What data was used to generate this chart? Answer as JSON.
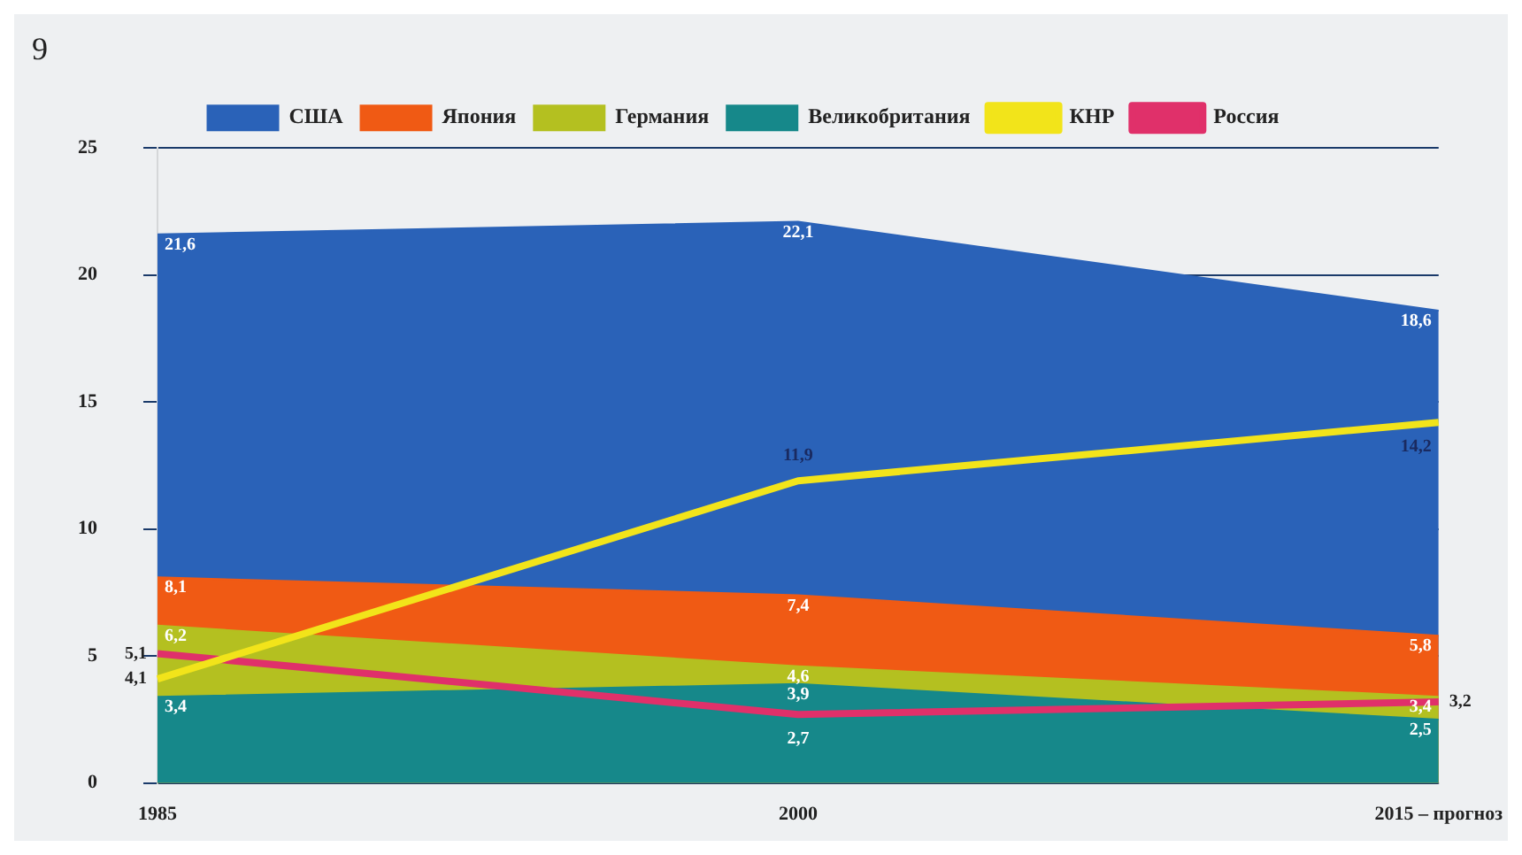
{
  "chart_data": {
    "type": "area",
    "title": "9",
    "categories": [
      "1985",
      "2000",
      "2015 – прогноз"
    ],
    "series": [
      {
        "name": "США",
        "color": "#2a62b8",
        "values": [
          21.6,
          22.1,
          18.6
        ],
        "value_labels": [
          "21,6",
          "22,1",
          "18,6"
        ]
      },
      {
        "name": "Япония",
        "color": "#f05a14",
        "values": [
          8.1,
          7.4,
          5.8
        ],
        "value_labels": [
          "8,1",
          "7,4",
          "5,8"
        ]
      },
      {
        "name": "Германия",
        "color": "#b4c020",
        "values": [
          6.2,
          4.6,
          3.4
        ],
        "value_labels": [
          "6,2",
          "4,6",
          "3,4"
        ]
      },
      {
        "name": "Великобритания",
        "color": "#16888a",
        "values": [
          3.4,
          3.9,
          2.5
        ],
        "value_labels": [
          "3,4",
          "3,9",
          "2,5"
        ]
      },
      {
        "name": "КНР",
        "color": "#f2e41a",
        "type": "line",
        "values": [
          4.1,
          11.9,
          14.2
        ],
        "value_labels": [
          "4,1",
          "11,9",
          "14,2"
        ]
      },
      {
        "name": "Россия",
        "color": "#e0306a",
        "type": "line",
        "values": [
          5.1,
          2.7,
          3.2
        ],
        "value_labels": [
          "5,1",
          "2,7",
          "3,2"
        ]
      }
    ],
    "ylim": [
      0,
      25
    ],
    "yticks": [
      0,
      5,
      10,
      15,
      20,
      25
    ],
    "grid": "y",
    "legend": "top"
  }
}
